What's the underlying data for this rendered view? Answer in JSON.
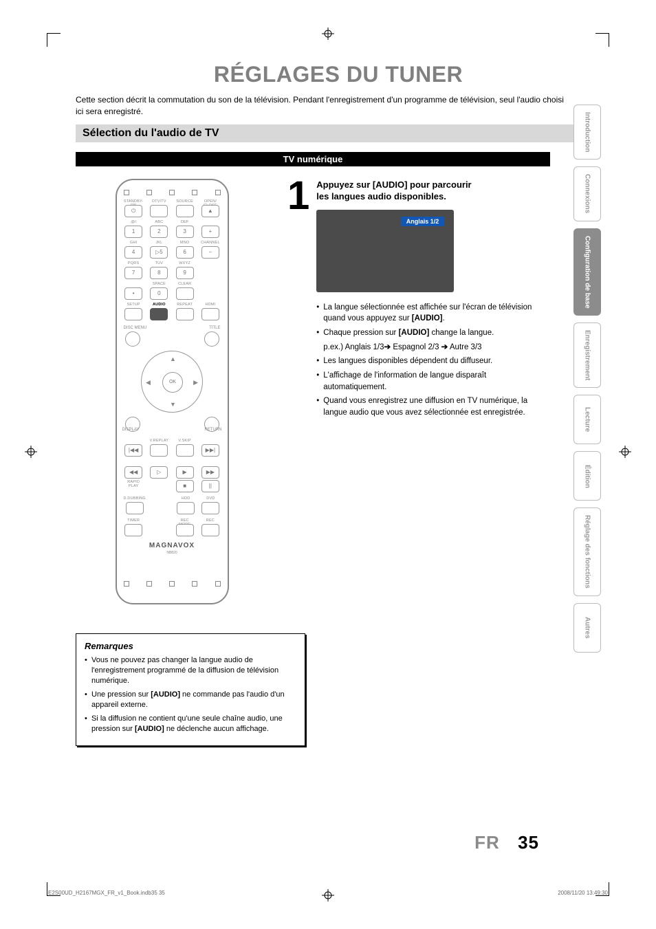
{
  "page": {
    "title": "RÉGLAGES DU TUNER",
    "intro": "Cette section décrit la commutation du son de la télévision. Pendant l'enregistrement d'un programme de télévision, seul l'audio choisi ici sera enregistré.",
    "section_bar": "Sélection du l'audio de TV",
    "sub_bar": "TV numérique"
  },
  "remote": {
    "labels": {
      "standby": "STANDBY-ON",
      "dtv": "DTV/TV",
      "source": "SOURCE",
      "open": "OPEN/\nCLOSE",
      "abc": ".@/:",
      "abc2": "ABC",
      "def": "DEF",
      "ghi": "GHI",
      "jkl": "JKL",
      "mno": "MNO",
      "channel": "CHANNEL",
      "pqrs": "PQRS",
      "tuv": "TUV",
      "wxyz": "WXYZ",
      "space": "SPACE",
      "clear": "CLEAR",
      "setup": "SETUP",
      "audio": "AUDIO",
      "repeat": "REPEAT",
      "hdmi": "HDMI",
      "discmenu": "DISC MENU",
      "title": "TITLE",
      "display": "DISPLAY",
      "return": "RETURN",
      "ok": "OK",
      "vreplay": "V.REPLAY",
      "vskip": "V.SKIP",
      "rapid": "RAPID PLAY",
      "ddub": "D.DUBBING",
      "hdd": "HDD",
      "dvd": "DVD",
      "timer": "TIMER",
      "recmode": "REC MODE",
      "rec": "REC"
    },
    "digits": [
      "1",
      "2",
      "3",
      "4",
      "5",
      "6",
      "7",
      "8",
      "9",
      "0"
    ],
    "brand": "MAGNAVOX",
    "model": "NB820"
  },
  "step": {
    "num": "1",
    "heading_a": "Appuyez sur [AUDIO] pour parcourir",
    "heading_b": "les langues audio disponibles.",
    "pill": "Anglais 1/2",
    "bullets": [
      "La langue sélectionnée est affichée sur l'écran de télévision quand vous appuyez sur [AUDIO].",
      "Chaque pression sur [AUDIO] change la langue.",
      "p.ex.) Anglais 1/3→ Espagnol 2/3 → Autre 3/3",
      "Les langues disponibles dépendent du diffuseur.",
      "L'affichage de l'information de langue disparaît automatiquement.",
      "Quand vous enregistrez une diffusion en TV numérique, la langue audio que vous avez sélectionnée est enregistrée."
    ],
    "bullets_format": {
      "bold_tokens": [
        "[AUDIO]"
      ],
      "sub_line_index": 2
    }
  },
  "remarks": {
    "title": "Remarques",
    "items": [
      "Vous ne pouvez pas changer la langue audio de l'enregistrement programmé de la diffusion de télévision numérique.",
      "Une pression sur [AUDIO] ne commande pas l'audio d'un appareil externe.",
      "Si la diffusion ne contient qu'une seule chaîne audio, une pression sur [AUDIO] ne déclenche aucun affichage."
    ]
  },
  "tabs": [
    {
      "label": "Introduction",
      "active": false
    },
    {
      "label": "Connexions",
      "active": false
    },
    {
      "label": "Configuration de base",
      "active": true
    },
    {
      "label": "Enregistrement",
      "active": false
    },
    {
      "label": "Lecture",
      "active": false
    },
    {
      "label": "Édition",
      "active": false
    },
    {
      "label": "Réglage des fonctions",
      "active": false
    },
    {
      "label": "Autres",
      "active": false
    }
  ],
  "footer": {
    "lang": "FR",
    "page_num": "35",
    "tiny_left": "E2S00UD_H2167MGX_FR_v1_Book.indb35   35",
    "tiny_right": "2008/11/20   13:49:30"
  },
  "style": {
    "title_color": "#808080",
    "section_bg": "#d8d8d8",
    "subbar_bg": "#000000",
    "subbar_fg": "#ffffff",
    "tab_inactive_fg": "#9b9b9b",
    "tab_active_bg": "#8c8c8c",
    "tvshot_bg": "#4b4b4b",
    "pill_bg": "#1157b3"
  }
}
